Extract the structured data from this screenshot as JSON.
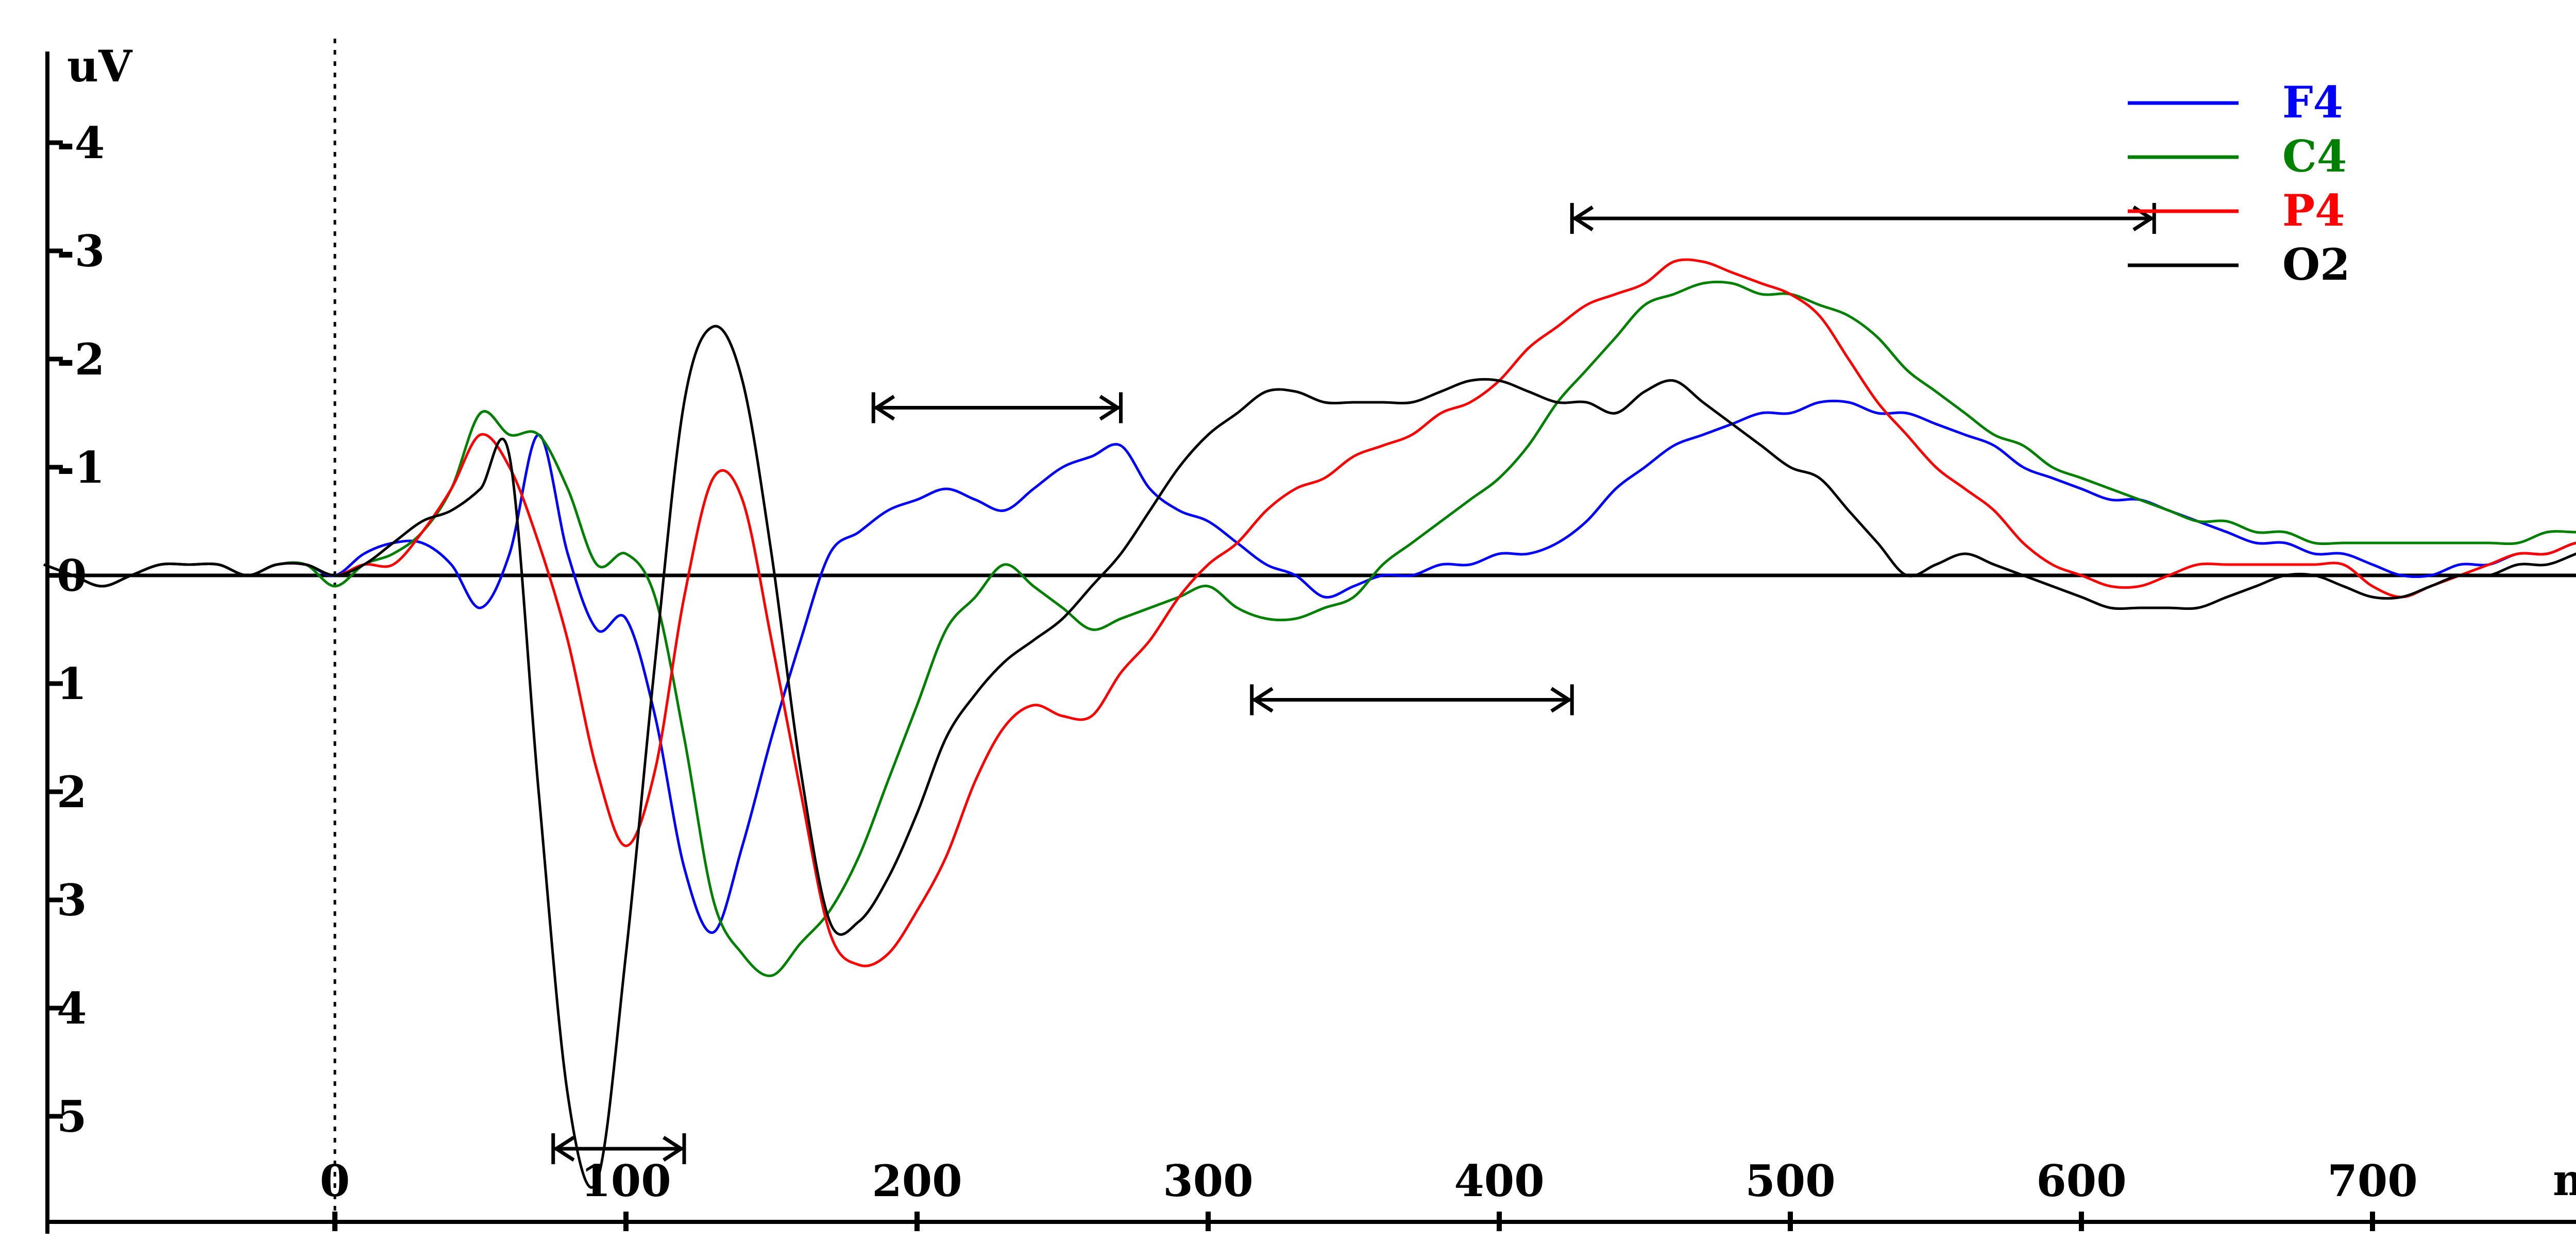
{
  "chart_data": {
    "type": "line",
    "title": "",
    "ylabel": "uV",
    "xlabel": "ms",
    "xlim": [
      -100,
      800
    ],
    "ylim": [
      5.7,
      -4.9
    ],
    "y_inverted": true,
    "grid": false,
    "legend_position": "top-right",
    "x_ticks": [
      0,
      100,
      200,
      300,
      400,
      500,
      600,
      700
    ],
    "y_ticks": [
      {
        "value": -4,
        "label": "-4"
      },
      {
        "value": -3,
        "label": "-3"
      },
      {
        "value": -2,
        "label": "-2"
      },
      {
        "value": -1,
        "label": "-1"
      },
      {
        "value": 0,
        "label": "0"
      },
      {
        "value": 1,
        "label": "1"
      },
      {
        "value": 2,
        "label": "2"
      },
      {
        "value": 3,
        "label": "3"
      },
      {
        "value": 4,
        "label": "4"
      },
      {
        "value": 5,
        "label": "5"
      }
    ],
    "stimulus_marker_x": 0,
    "series": [
      {
        "name": "F4",
        "color": "#0000ff",
        "x": [
          -100,
          -90,
          -80,
          -70,
          -60,
          -50,
          -40,
          -30,
          -20,
          -10,
          0,
          10,
          20,
          30,
          40,
          50,
          60,
          70,
          80,
          90,
          100,
          110,
          120,
          130,
          140,
          150,
          160,
          170,
          180,
          190,
          200,
          210,
          220,
          230,
          240,
          250,
          260,
          270,
          280,
          290,
          300,
          310,
          320,
          330,
          340,
          350,
          360,
          370,
          380,
          390,
          400,
          410,
          420,
          430,
          440,
          450,
          460,
          470,
          480,
          490,
          500,
          510,
          520,
          530,
          540,
          550,
          560,
          570,
          580,
          590,
          600,
          610,
          620,
          630,
          640,
          650,
          660,
          670,
          680,
          690,
          700,
          710,
          720,
          730,
          740,
          750,
          760,
          770,
          780,
          790,
          800
        ],
        "values": [
          -0.1,
          0.0,
          0.1,
          0.0,
          -0.1,
          -0.1,
          -0.1,
          0.0,
          -0.1,
          -0.1,
          0.0,
          -0.2,
          -0.3,
          -0.3,
          -0.1,
          0.3,
          -0.2,
          -1.3,
          -0.2,
          0.5,
          0.4,
          1.3,
          2.7,
          3.3,
          2.5,
          1.5,
          0.6,
          -0.2,
          -0.4,
          -0.6,
          -0.7,
          -0.8,
          -0.7,
          -0.6,
          -0.8,
          -1.0,
          -1.1,
          -1.2,
          -0.8,
          -0.6,
          -0.5,
          -0.3,
          -0.1,
          0.0,
          0.2,
          0.1,
          0.0,
          0.0,
          -0.1,
          -0.1,
          -0.2,
          -0.2,
          -0.3,
          -0.5,
          -0.8,
          -1.0,
          -1.2,
          -1.3,
          -1.4,
          -1.5,
          -1.5,
          -1.6,
          -1.6,
          -1.5,
          -1.5,
          -1.4,
          -1.3,
          -1.2,
          -1.0,
          -0.9,
          -0.8,
          -0.7,
          -0.7,
          -0.6,
          -0.5,
          -0.4,
          -0.3,
          -0.3,
          -0.2,
          -0.2,
          -0.1,
          0.0,
          0.0,
          -0.1,
          -0.1,
          -0.2,
          -0.2,
          -0.3,
          -0.3,
          -0.3,
          -0.1
        ]
      },
      {
        "name": "C4",
        "color": "#008000",
        "x": [
          -100,
          -90,
          -80,
          -70,
          -60,
          -50,
          -40,
          -30,
          -20,
          -10,
          0,
          10,
          20,
          30,
          40,
          50,
          60,
          70,
          80,
          90,
          100,
          110,
          120,
          130,
          140,
          150,
          160,
          170,
          180,
          190,
          200,
          210,
          220,
          230,
          240,
          250,
          260,
          270,
          280,
          290,
          300,
          310,
          320,
          330,
          340,
          350,
          360,
          370,
          380,
          390,
          400,
          410,
          420,
          430,
          440,
          450,
          460,
          470,
          480,
          490,
          500,
          510,
          520,
          530,
          540,
          550,
          560,
          570,
          580,
          590,
          600,
          610,
          620,
          630,
          640,
          650,
          660,
          670,
          680,
          690,
          700,
          710,
          720,
          730,
          740,
          750,
          760,
          770,
          780,
          790,
          800
        ],
        "values": [
          -0.1,
          0.0,
          0.1,
          0.0,
          -0.1,
          -0.1,
          -0.1,
          0.0,
          -0.1,
          -0.1,
          0.1,
          -0.1,
          -0.2,
          -0.4,
          -0.8,
          -1.5,
          -1.3,
          -1.3,
          -0.8,
          -0.1,
          -0.2,
          0.2,
          1.5,
          3.0,
          3.5,
          3.7,
          3.4,
          3.1,
          2.6,
          1.9,
          1.2,
          0.5,
          0.2,
          -0.1,
          0.1,
          0.3,
          0.5,
          0.4,
          0.3,
          0.2,
          0.1,
          0.3,
          0.4,
          0.4,
          0.3,
          0.2,
          -0.1,
          -0.3,
          -0.5,
          -0.7,
          -0.9,
          -1.2,
          -1.6,
          -1.9,
          -2.2,
          -2.5,
          -2.6,
          -2.7,
          -2.7,
          -2.6,
          -2.6,
          -2.5,
          -2.4,
          -2.2,
          -1.9,
          -1.7,
          -1.5,
          -1.3,
          -1.2,
          -1.0,
          -0.9,
          -0.8,
          -0.7,
          -0.6,
          -0.5,
          -0.5,
          -0.4,
          -0.4,
          -0.3,
          -0.3,
          -0.3,
          -0.3,
          -0.3,
          -0.3,
          -0.3,
          -0.3,
          -0.4,
          -0.4,
          -0.4,
          -0.4,
          -0.3
        ]
      },
      {
        "name": "P4",
        "color": "#ff0000",
        "x": [
          -100,
          -90,
          -80,
          -70,
          -60,
          -50,
          -40,
          -30,
          -20,
          -10,
          0,
          10,
          20,
          30,
          40,
          50,
          60,
          70,
          80,
          90,
          100,
          110,
          120,
          130,
          140,
          150,
          160,
          170,
          180,
          190,
          200,
          210,
          220,
          230,
          240,
          250,
          260,
          270,
          280,
          290,
          300,
          310,
          320,
          330,
          340,
          350,
          360,
          370,
          380,
          390,
          400,
          410,
          420,
          430,
          440,
          450,
          460,
          470,
          480,
          490,
          500,
          510,
          520,
          530,
          540,
          550,
          560,
          570,
          580,
          590,
          600,
          610,
          620,
          630,
          640,
          650,
          660,
          670,
          680,
          690,
          700,
          710,
          720,
          730,
          740,
          750,
          760,
          770,
          780,
          790,
          800
        ],
        "values": [
          -0.1,
          0.0,
          0.1,
          0.0,
          -0.1,
          -0.1,
          -0.1,
          0.0,
          -0.1,
          -0.1,
          0.0,
          -0.1,
          -0.1,
          -0.4,
          -0.8,
          -1.3,
          -1.0,
          -0.3,
          0.6,
          1.8,
          2.5,
          1.8,
          0.2,
          -0.9,
          -0.7,
          0.6,
          2.0,
          3.3,
          3.6,
          3.5,
          3.1,
          2.6,
          1.9,
          1.4,
          1.2,
          1.3,
          1.3,
          0.9,
          0.6,
          0.2,
          -0.1,
          -0.3,
          -0.6,
          -0.8,
          -0.9,
          -1.1,
          -1.2,
          -1.3,
          -1.5,
          -1.6,
          -1.8,
          -2.1,
          -2.3,
          -2.5,
          -2.6,
          -2.7,
          -2.9,
          -2.9,
          -2.8,
          -2.7,
          -2.6,
          -2.4,
          -2.0,
          -1.6,
          -1.3,
          -1.0,
          -0.8,
          -0.6,
          -0.3,
          -0.1,
          0.0,
          0.1,
          0.1,
          0.0,
          -0.1,
          -0.1,
          -0.1,
          -0.1,
          -0.1,
          -0.1,
          0.1,
          0.2,
          0.1,
          0.0,
          -0.1,
          -0.2,
          -0.2,
          -0.3,
          -0.3,
          -0.3,
          -0.2
        ]
      },
      {
        "name": "O2",
        "color": "#000000",
        "x": [
          -100,
          -90,
          -80,
          -70,
          -60,
          -50,
          -40,
          -30,
          -20,
          -10,
          0,
          10,
          20,
          30,
          40,
          50,
          60,
          70,
          80,
          90,
          100,
          110,
          120,
          130,
          140,
          150,
          160,
          170,
          180,
          190,
          200,
          210,
          220,
          230,
          240,
          250,
          260,
          270,
          280,
          290,
          300,
          310,
          320,
          330,
          340,
          350,
          360,
          370,
          380,
          390,
          400,
          410,
          420,
          430,
          440,
          450,
          460,
          470,
          480,
          490,
          500,
          510,
          520,
          530,
          540,
          550,
          560,
          570,
          580,
          590,
          600,
          610,
          620,
          630,
          640,
          650,
          660,
          670,
          680,
          690,
          700,
          710,
          720,
          730,
          740,
          750,
          760,
          770,
          780,
          790,
          800
        ],
        "values": [
          -0.1,
          0.0,
          0.1,
          0.0,
          -0.1,
          -0.1,
          -0.1,
          0.0,
          -0.1,
          -0.1,
          0.0,
          -0.1,
          -0.3,
          -0.5,
          -0.6,
          -0.8,
          -1.1,
          2.0,
          4.8,
          5.6,
          3.5,
          0.8,
          -1.6,
          -2.3,
          -1.8,
          -0.2,
          1.8,
          3.2,
          3.2,
          2.8,
          2.2,
          1.5,
          1.1,
          0.8,
          0.6,
          0.4,
          0.1,
          -0.2,
          -0.6,
          -1.0,
          -1.3,
          -1.5,
          -1.7,
          -1.7,
          -1.6,
          -1.6,
          -1.6,
          -1.6,
          -1.7,
          -1.8,
          -1.8,
          -1.7,
          -1.6,
          -1.6,
          -1.5,
          -1.7,
          -1.8,
          -1.6,
          -1.4,
          -1.2,
          -1.0,
          -0.9,
          -0.6,
          -0.3,
          0.0,
          -0.1,
          -0.2,
          -0.1,
          0.0,
          0.1,
          0.2,
          0.3,
          0.3,
          0.3,
          0.3,
          0.2,
          0.1,
          0.0,
          0.0,
          0.1,
          0.2,
          0.2,
          0.1,
          0.0,
          0.0,
          -0.1,
          -0.1,
          -0.2,
          -0.3,
          -0.2,
          -0.2
        ]
      }
    ],
    "time_windows": [
      {
        "start": 75,
        "end": 120,
        "level": 5.3
      },
      {
        "start": 185,
        "end": 270,
        "level": -1.55
      },
      {
        "start": 315,
        "end": 425,
        "level": 1.15
      },
      {
        "start": 425,
        "end": 625,
        "level": -3.3
      }
    ]
  }
}
